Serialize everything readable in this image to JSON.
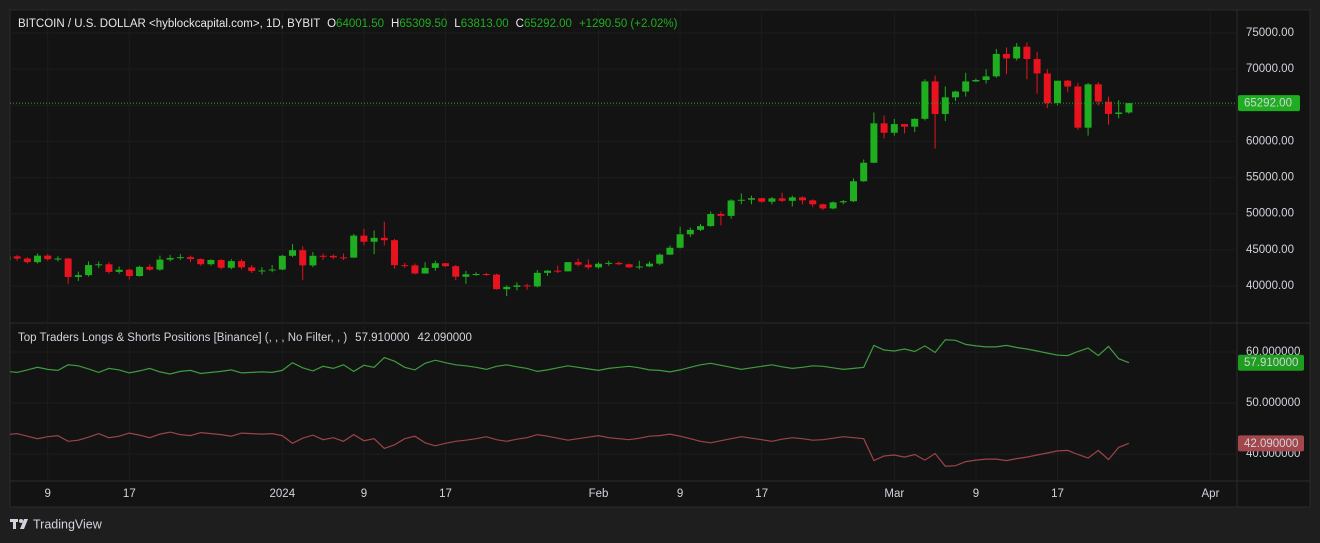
{
  "header": {
    "symbol": "BITCOIN / U.S. DOLLAR <hyblockcapital.com>, 1D, BYBIT",
    "ohlc": [
      {
        "key": "O",
        "value": "64001.50"
      },
      {
        "key": "H",
        "value": "65309.50"
      },
      {
        "key": "L",
        "value": "63813.00"
      },
      {
        "key": "C",
        "value": "65292.00"
      }
    ],
    "change": "+1290.50 (+2.02%)"
  },
  "footer": {
    "brand": "TradingView"
  },
  "chart_data": [
    {
      "type": "candlestick",
      "up_color": "#1fae1f",
      "down_color": "#e8131f",
      "x": [
        0,
        1,
        2,
        3,
        4,
        5,
        6,
        7,
        8,
        9,
        10,
        11,
        12,
        13,
        14,
        15,
        16,
        17,
        18,
        19,
        20,
        21,
        22,
        23,
        24,
        25,
        26,
        27,
        28,
        29,
        30,
        31,
        32,
        33,
        34,
        35,
        36,
        37,
        38,
        39,
        40,
        41,
        42,
        43,
        44,
        45,
        46,
        47,
        48,
        49,
        50,
        51,
        52,
        53,
        54,
        55,
        56,
        57,
        58,
        59,
        60,
        61,
        62,
        63,
        64,
        65,
        66,
        67,
        68,
        69,
        70,
        71,
        72,
        73,
        74,
        75,
        76,
        77,
        78,
        79,
        80,
        81,
        82,
        83,
        84,
        85,
        86,
        87,
        88,
        89,
        90,
        91,
        92,
        93,
        94,
        95,
        96,
        97,
        98,
        99,
        100,
        101,
        102,
        103,
        104,
        105,
        106,
        107,
        108,
        109,
        110
      ],
      "open": [
        43600,
        44100,
        43800,
        43300,
        44200,
        43700,
        43800,
        41250,
        41500,
        42900,
        43000,
        41950,
        42250,
        41380,
        42650,
        42270,
        43650,
        43880,
        43990,
        43730,
        43010,
        43600,
        42520,
        43440,
        42580,
        42070,
        42150,
        42280,
        44180,
        44950,
        42850,
        44180,
        44170,
        43960,
        43930,
        46970,
        46120,
        46660,
        46340,
        42880,
        42850,
        41730,
        42510,
        43150,
        42740,
        41280,
        41620,
        41660,
        41580,
        39560,
        39880,
        40080,
        39940,
        41820,
        42120,
        42030,
        43300,
        42950,
        42580,
        43080,
        43200,
        43010,
        42580,
        42700,
        43090,
        44340,
        45290,
        47150,
        47770,
        48290,
        49960,
        49700,
        51830,
        51930,
        52150,
        51660,
        52120,
        51780,
        52260,
        51850,
        51300,
        50730,
        51570,
        51730,
        54490,
        57050,
        62500,
        61200,
        62400,
        62040,
        63130,
        68300,
        63800,
        66100,
        66900,
        68300,
        68500,
        69000,
        72100,
        71480,
        73100,
        71400,
        69400,
        65300,
        68400,
        67600,
        61900,
        67900,
        65500,
        63800,
        64001.5
      ],
      "high": [
        44500,
        44300,
        44000,
        44500,
        44400,
        44100,
        43900,
        42000,
        43400,
        43400,
        43300,
        42700,
        42400,
        42800,
        43000,
        44200,
        44300,
        44400,
        44200,
        43800,
        43700,
        43700,
        43700,
        43700,
        42900,
        42600,
        42900,
        44300,
        45800,
        45500,
        44700,
        44500,
        44400,
        44500,
        47200,
        47900,
        47700,
        48900,
        46500,
        43200,
        43100,
        43300,
        43500,
        43200,
        42900,
        42100,
        41900,
        41800,
        41700,
        40100,
        40500,
        40300,
        42200,
        42200,
        42800,
        43300,
        43800,
        43700,
        43300,
        43500,
        43400,
        43100,
        43500,
        43400,
        44500,
        45600,
        48200,
        48100,
        48600,
        50300,
        50300,
        52000,
        52800,
        52500,
        52200,
        52300,
        52900,
        52500,
        52400,
        52000,
        51400,
        51700,
        51900,
        54900,
        57500,
        64000,
        63600,
        63100,
        62400,
        63200,
        68600,
        69100,
        67600,
        67000,
        69500,
        68700,
        70000,
        72800,
        73000,
        73600,
        73700,
        72400,
        70000,
        68400,
        68500,
        68100,
        68100,
        68200,
        66200,
        65700,
        65309.5
      ],
      "low": [
        43300,
        43500,
        43100,
        43100,
        43500,
        43400,
        40300,
        40700,
        41300,
        42500,
        41700,
        41700,
        40900,
        41300,
        42100,
        42100,
        43400,
        43600,
        43300,
        42800,
        42800,
        42300,
        42300,
        42300,
        41800,
        41600,
        41900,
        42200,
        44000,
        40800,
        42600,
        43600,
        43700,
        43600,
        43900,
        45600,
        44400,
        45600,
        42400,
        42500,
        41600,
        41700,
        42100,
        42600,
        40800,
        40300,
        41400,
        41400,
        39500,
        38600,
        39400,
        39500,
        39800,
        41400,
        41800,
        42000,
        42700,
        42300,
        42400,
        42800,
        42900,
        42500,
        42300,
        42600,
        42900,
        44300,
        45200,
        46800,
        47600,
        48200,
        48400,
        49300,
        51300,
        51300,
        51500,
        51300,
        51600,
        51000,
        51300,
        50900,
        50500,
        50600,
        51300,
        51600,
        54400,
        57000,
        60400,
        60800,
        61100,
        61300,
        62900,
        59000,
        62800,
        65600,
        66200,
        68200,
        68000,
        68800,
        69300,
        71200,
        68600,
        66600,
        64600,
        65000,
        66800,
        61600,
        60800,
        65000,
        62300,
        63200,
        63813
      ],
      "close": [
        44100,
        43800,
        43300,
        44200,
        43700,
        43800,
        41250,
        41500,
        42900,
        43000,
        41950,
        42250,
        41380,
        42650,
        42270,
        43650,
        43880,
        43990,
        43730,
        43010,
        43600,
        42520,
        43440,
        42580,
        42070,
        42150,
        42280,
        44180,
        44950,
        42850,
        44180,
        44170,
        43960,
        43930,
        46970,
        46120,
        46660,
        46340,
        42880,
        42850,
        41730,
        42510,
        43150,
        42740,
        41280,
        41620,
        41660,
        41580,
        39560,
        39880,
        40080,
        39940,
        41820,
        42120,
        42030,
        43300,
        42950,
        42580,
        43080,
        43200,
        43010,
        42580,
        42700,
        43090,
        44340,
        45290,
        47150,
        47770,
        48290,
        49960,
        49700,
        51830,
        51930,
        52150,
        51660,
        52120,
        51780,
        52260,
        51850,
        51300,
        50730,
        51570,
        51730,
        54490,
        57050,
        62500,
        61200,
        62400,
        62040,
        63130,
        68300,
        63800,
        66100,
        66900,
        68300,
        68500,
        69000,
        72100,
        71480,
        73100,
        71400,
        69400,
        65300,
        68400,
        67600,
        61900,
        67900,
        65500,
        63800,
        64000,
        65292
      ],
      "last_label": "65292.00",
      "xlim": [
        0.3,
        120.6
      ],
      "xticks": [
        {
          "value": 4,
          "label": "9"
        },
        {
          "value": 12,
          "label": "17"
        },
        {
          "value": 27,
          "label": "2024"
        },
        {
          "value": 35,
          "label": "9"
        },
        {
          "value": 43,
          "label": "17"
        },
        {
          "value": 58,
          "label": "Feb"
        },
        {
          "value": 66,
          "label": "9"
        },
        {
          "value": 74,
          "label": "17"
        },
        {
          "value": 87,
          "label": "Mar"
        },
        {
          "value": 95,
          "label": "9"
        },
        {
          "value": 103,
          "label": "17"
        },
        {
          "value": 118,
          "label": "Apr"
        }
      ],
      "ylim": [
        35020,
        78180
      ],
      "yticks": [
        {
          "value": 40000,
          "label": "40000.00"
        },
        {
          "value": 45000,
          "label": "45000.00"
        },
        {
          "value": 50000,
          "label": "50000.00"
        },
        {
          "value": 55000,
          "label": "55000.00"
        },
        {
          "value": 60000,
          "label": "60000.00"
        },
        {
          "value": 65000,
          "label": "65000.00"
        },
        {
          "value": 70000,
          "label": "70000.00"
        },
        {
          "value": 75000,
          "label": "75000.00"
        }
      ]
    },
    {
      "type": "line",
      "title": "Top Traders Longs & Shorts Positions [Binance] (, , , No Filter, , )",
      "x": [
        0,
        1,
        2,
        3,
        4,
        5,
        6,
        7,
        8,
        9,
        10,
        11,
        12,
        13,
        14,
        15,
        16,
        17,
        18,
        19,
        20,
        21,
        22,
        23,
        24,
        25,
        26,
        27,
        28,
        29,
        30,
        31,
        32,
        33,
        34,
        35,
        36,
        37,
        38,
        39,
        40,
        41,
        42,
        43,
        44,
        45,
        46,
        47,
        48,
        49,
        50,
        51,
        52,
        53,
        54,
        55,
        56,
        57,
        58,
        59,
        60,
        61,
        62,
        63,
        64,
        65,
        66,
        67,
        68,
        69,
        70,
        71,
        72,
        73,
        74,
        75,
        76,
        77,
        78,
        79,
        80,
        81,
        82,
        83,
        84,
        85,
        86,
        87,
        88,
        89,
        90,
        91,
        92,
        93,
        94,
        95,
        96,
        97,
        98,
        99,
        100,
        101,
        102,
        103,
        104,
        105,
        106,
        107,
        108,
        109,
        110
      ],
      "series": [
        {
          "color": "#3f9b3f",
          "tag_color": "#1e9e1e",
          "last_label": "57.910000",
          "values": [
            56.2,
            56.0,
            56.5,
            57.0,
            56.6,
            56.4,
            57.5,
            57.3,
            56.7,
            56.0,
            56.8,
            56.5,
            55.9,
            56.3,
            56.8,
            56.1,
            55.7,
            56.2,
            56.4,
            55.8,
            56.0,
            56.2,
            56.5,
            55.9,
            56.0,
            56.1,
            56.0,
            56.4,
            57.9,
            56.9,
            56.3,
            57.2,
            56.8,
            57.5,
            56.2,
            57.4,
            57.0,
            58.9,
            58.2,
            57.0,
            56.5,
            57.8,
            58.4,
            57.9,
            57.5,
            57.3,
            57.0,
            56.6,
            57.2,
            57.5,
            57.1,
            56.8,
            56.2,
            56.5,
            56.9,
            57.3,
            57.0,
            56.7,
            56.4,
            56.8,
            57.0,
            57.2,
            56.9,
            56.5,
            56.4,
            56.1,
            56.5,
            57.0,
            57.5,
            57.8,
            57.4,
            57.0,
            56.6,
            56.9,
            57.2,
            57.5,
            57.1,
            56.8,
            57.0,
            57.3,
            57.2,
            56.9,
            56.6,
            56.8,
            57.0,
            61.3,
            60.4,
            60.2,
            60.6,
            60.1,
            61.2,
            59.9,
            62.4,
            62.3,
            61.5,
            61.2,
            61.0,
            61.0,
            61.3,
            60.9,
            60.6,
            60.2,
            59.8,
            59.4,
            59.3,
            60.1,
            60.8,
            59.3,
            61.1,
            58.7,
            57.91
          ]
        },
        {
          "color": "#9c4448",
          "tag_color": "#a3474c",
          "last_label": "42.090000",
          "values": [
            43.8,
            44.0,
            43.5,
            43.0,
            43.4,
            43.6,
            42.5,
            42.7,
            43.3,
            44.0,
            43.2,
            43.5,
            44.1,
            43.7,
            43.2,
            43.9,
            44.3,
            43.8,
            43.6,
            44.2,
            44.0,
            43.8,
            43.5,
            44.1,
            44.0,
            43.9,
            44.0,
            43.6,
            42.1,
            43.1,
            43.7,
            42.8,
            43.2,
            42.5,
            43.8,
            42.6,
            43.0,
            41.1,
            41.8,
            43.0,
            43.5,
            42.2,
            41.6,
            42.1,
            42.5,
            42.7,
            43.0,
            43.4,
            42.8,
            42.5,
            42.9,
            43.2,
            43.8,
            43.5,
            43.1,
            42.7,
            43.0,
            43.3,
            43.6,
            43.2,
            43.0,
            42.8,
            43.1,
            43.5,
            43.6,
            43.9,
            43.5,
            43.0,
            42.5,
            42.2,
            42.6,
            43.0,
            43.4,
            43.1,
            42.8,
            42.5,
            42.9,
            43.2,
            43.0,
            42.7,
            42.8,
            43.1,
            43.4,
            43.2,
            43.0,
            38.7,
            39.6,
            39.8,
            39.4,
            39.9,
            38.8,
            40.1,
            37.6,
            37.7,
            38.5,
            38.8,
            39.0,
            39.0,
            38.7,
            39.1,
            39.4,
            39.8,
            40.2,
            40.6,
            40.7,
            39.9,
            39.2,
            40.7,
            38.9,
            41.3,
            42.09
          ]
        }
      ],
      "xlim": [
        0.3,
        120.6
      ],
      "ylim": [
        34.9,
        65.5
      ],
      "yticks": [
        {
          "value": 40,
          "label": "40.000000"
        },
        {
          "value": 50,
          "label": "50.000000"
        },
        {
          "value": 60,
          "label": "60.000000"
        }
      ]
    }
  ]
}
